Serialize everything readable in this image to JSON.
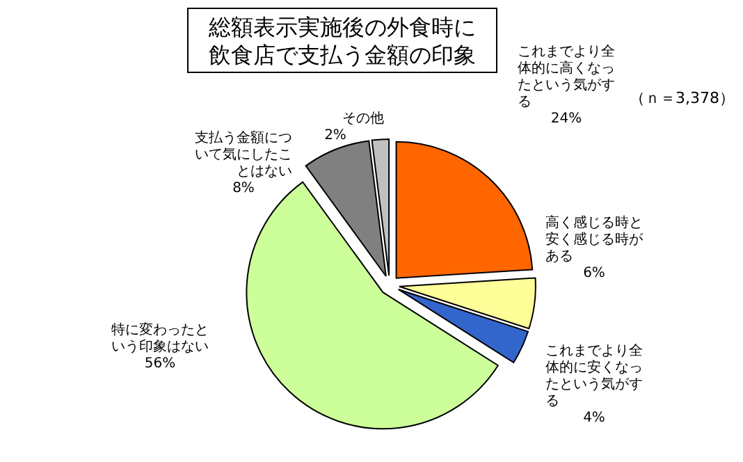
{
  "chart_data": {
    "type": "pie",
    "title": "総額表示実施後の外食時に飲食店で支払う金額の印象",
    "annotations": [
      "（ｎ＝3,378）"
    ],
    "categories": [
      "これまでより全体的に高くなったという気がする",
      "高く感じる時と安く感じる時がある",
      "これまでより全体的に安くなったという気がする",
      "特に変わったという印象はない",
      "支払う金額について気にしたことはない",
      "その他"
    ],
    "values": [
      24,
      6,
      4,
      56,
      8,
      2
    ],
    "colors": [
      "#ff6600",
      "#ffff99",
      "#3366cc",
      "#ccff99",
      "#808080",
      "#c0c0c0"
    ],
    "value_labels": [
      "24%",
      "6%",
      "4%",
      "56%",
      "8%",
      "2%"
    ]
  }
}
